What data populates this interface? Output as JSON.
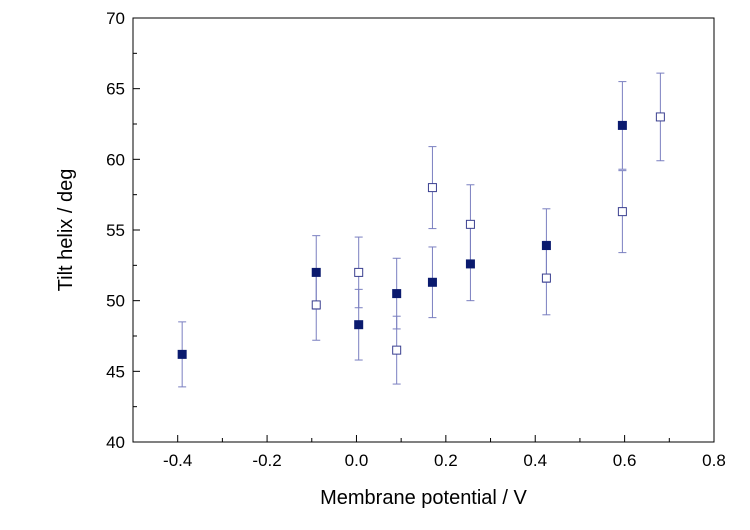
{
  "chart_data": {
    "type": "scatter",
    "title": "",
    "xlabel": "Membrane potential / V",
    "ylabel": "Tilt helix / deg",
    "xlim": [
      -0.5,
      0.8
    ],
    "ylim": [
      40,
      70
    ],
    "x_ticks": [
      -0.4,
      -0.2,
      0.0,
      0.2,
      0.4,
      0.6,
      0.8
    ],
    "x_tick_labels": [
      "-0.4",
      "-0.2",
      "0.0",
      "0.2",
      "0.4",
      "0.6",
      "0.8"
    ],
    "y_ticks": [
      40,
      45,
      50,
      55,
      60,
      65,
      70
    ],
    "y_tick_labels": [
      "40",
      "45",
      "50",
      "55",
      "60",
      "65",
      "70"
    ],
    "grid": false,
    "legend": "none",
    "series": [
      {
        "marker": "filled-square",
        "color": "#0a1a6e",
        "points": [
          {
            "x": -0.39,
            "y": 46.2,
            "err": 2.3
          },
          {
            "x": -0.09,
            "y": 52.0,
            "err": 2.6
          },
          {
            "x": 0.005,
            "y": 48.3,
            "err": 2.5
          },
          {
            "x": 0.09,
            "y": 50.5,
            "err": 2.5
          },
          {
            "x": 0.17,
            "y": 51.3,
            "err": 2.5
          },
          {
            "x": 0.255,
            "y": 52.6,
            "err": 2.6
          },
          {
            "x": 0.425,
            "y": 53.9,
            "err": 2.6
          },
          {
            "x": 0.595,
            "y": 62.4,
            "err": 3.1
          }
        ]
      },
      {
        "marker": "open-square",
        "color": "#3a3f8f",
        "points": [
          {
            "x": -0.09,
            "y": 49.7,
            "err": 2.5
          },
          {
            "x": 0.005,
            "y": 52.0,
            "err": 2.5
          },
          {
            "x": 0.09,
            "y": 46.5,
            "err": 2.4
          },
          {
            "x": 0.17,
            "y": 58.0,
            "err": 2.9
          },
          {
            "x": 0.255,
            "y": 55.4,
            "err": 2.8
          },
          {
            "x": 0.425,
            "y": 51.6,
            "err": 2.6
          },
          {
            "x": 0.595,
            "y": 56.3,
            "err": 2.9
          },
          {
            "x": 0.68,
            "y": 63.0,
            "err": 3.1
          }
        ]
      }
    ],
    "colors": {
      "axis": "#000000",
      "errorbar": "#7a7fc0"
    }
  }
}
